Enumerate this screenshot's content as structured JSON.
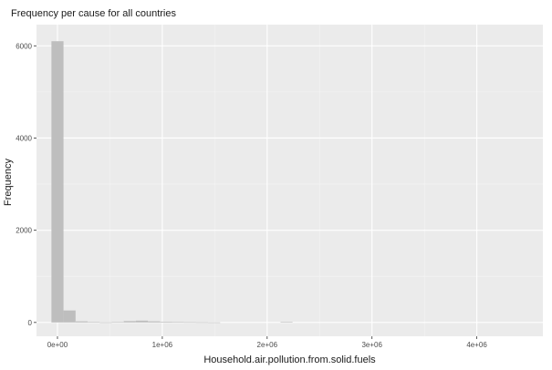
{
  "chart_data": {
    "type": "bar",
    "subtype": "histogram",
    "title": "Frequency per cause for all countries",
    "xlabel": "Household.air.pollution.from.solid.fuels",
    "ylabel": "Frequency",
    "x_ticks": [
      {
        "value": 0,
        "label": "0e+00"
      },
      {
        "value": 1000000,
        "label": "1e+06"
      },
      {
        "value": 2000000,
        "label": "2e+06"
      },
      {
        "value": 3000000,
        "label": "3e+06"
      },
      {
        "value": 4000000,
        "label": "4e+06"
      }
    ],
    "y_ticks": [
      {
        "value": 0,
        "label": "0"
      },
      {
        "value": 2000,
        "label": "2000"
      },
      {
        "value": 4000,
        "label": "4000"
      },
      {
        "value": 6000,
        "label": "6000"
      }
    ],
    "xlim": [
      -200000,
      4630000
    ],
    "ylim": [
      -300,
      6460
    ],
    "bin_width": 115000,
    "bins": [
      {
        "start": -57500,
        "count": 6100
      },
      {
        "start": 57500,
        "count": 260
      },
      {
        "start": 172500,
        "count": 25
      },
      {
        "start": 287500,
        "count": 8
      },
      {
        "start": 402500,
        "count": 3
      },
      {
        "start": 517500,
        "count": 12
      },
      {
        "start": 632500,
        "count": 30
      },
      {
        "start": 747500,
        "count": 40
      },
      {
        "start": 862500,
        "count": 25
      },
      {
        "start": 977500,
        "count": 15
      },
      {
        "start": 1092500,
        "count": 8
      },
      {
        "start": 1207500,
        "count": 6
      },
      {
        "start": 1322500,
        "count": 4
      },
      {
        "start": 1437500,
        "count": 2
      },
      {
        "start": 2127500,
        "count": 8
      }
    ],
    "colors": {
      "bar": "#bebebe",
      "panel": "#ebebeb",
      "grid_major": "#ffffff",
      "grid_minor": "#f5f5f5",
      "text": "#4d4d4d",
      "tick": "#333333"
    },
    "grid": true,
    "legend": "none"
  }
}
